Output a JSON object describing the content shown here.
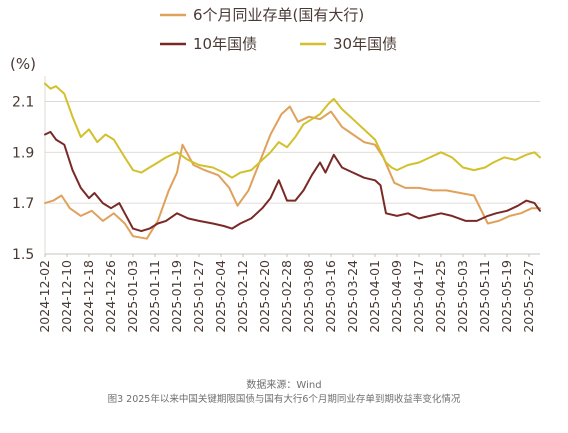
{
  "chart_data": {
    "type": "line",
    "ylabel": "(%)",
    "ylim": [
      1.5,
      2.2
    ],
    "yticks": [
      1.5,
      1.7,
      1.9,
      2.1
    ],
    "ytick_labels": [
      "1.5",
      "1.7",
      "1.9",
      "2.1"
    ],
    "grid": "horizontal",
    "legend_placement": "top-center",
    "x_tick_labels": [
      "2024-12-02",
      "2024-12-10",
      "2024-12-18",
      "2024-12-26",
      "2025-01-03",
      "2025-01-11",
      "2025-01-19",
      "2025-01-27",
      "2025-02-04",
      "2025-02-12",
      "2025-02-20",
      "2025-02-28",
      "2025-03-08",
      "2025-03-16",
      "2025-03-24",
      "2025-04-01",
      "2025-04-09",
      "2025-04-17",
      "2025-04-25",
      "2025-05-03",
      "2025-05-11",
      "2025-05-19",
      "2025-05-27"
    ],
    "series": [
      {
        "name": "6个月同业存单(国有大行)",
        "color": "#e0a15c",
        "points": [
          [
            "2024-12-02",
            1.7
          ],
          [
            "2024-12-05",
            1.71
          ],
          [
            "2024-12-08",
            1.73
          ],
          [
            "2024-12-11",
            1.68
          ],
          [
            "2024-12-15",
            1.65
          ],
          [
            "2024-12-19",
            1.67
          ],
          [
            "2024-12-23",
            1.63
          ],
          [
            "2024-12-27",
            1.66
          ],
          [
            "2024-12-31",
            1.62
          ],
          [
            "2025-01-03",
            1.57
          ],
          [
            "2025-01-08",
            1.56
          ],
          [
            "2025-01-12",
            1.63
          ],
          [
            "2025-01-16",
            1.75
          ],
          [
            "2025-01-19",
            1.82
          ],
          [
            "2025-01-21",
            1.93
          ],
          [
            "2025-01-25",
            1.85
          ],
          [
            "2025-01-29",
            1.83
          ],
          [
            "2025-02-03",
            1.81
          ],
          [
            "2025-02-07",
            1.76
          ],
          [
            "2025-02-10",
            1.69
          ],
          [
            "2025-02-14",
            1.75
          ],
          [
            "2025-02-18",
            1.86
          ],
          [
            "2025-02-22",
            1.97
          ],
          [
            "2025-02-26",
            2.05
          ],
          [
            "2025-03-01",
            2.08
          ],
          [
            "2025-03-04",
            2.02
          ],
          [
            "2025-03-08",
            2.04
          ],
          [
            "2025-03-12",
            2.03
          ],
          [
            "2025-03-16",
            2.06
          ],
          [
            "2025-03-20",
            2.0
          ],
          [
            "2025-03-24",
            1.97
          ],
          [
            "2025-03-28",
            1.94
          ],
          [
            "2025-04-01",
            1.93
          ],
          [
            "2025-04-04",
            1.88
          ],
          [
            "2025-04-08",
            1.78
          ],
          [
            "2025-04-12",
            1.76
          ],
          [
            "2025-04-17",
            1.76
          ],
          [
            "2025-04-22",
            1.75
          ],
          [
            "2025-04-27",
            1.75
          ],
          [
            "2025-05-02",
            1.74
          ],
          [
            "2025-05-07",
            1.73
          ],
          [
            "2025-05-12",
            1.62
          ],
          [
            "2025-05-16",
            1.63
          ],
          [
            "2025-05-20",
            1.65
          ],
          [
            "2025-05-24",
            1.66
          ],
          [
            "2025-05-28",
            1.68
          ],
          [
            "2025-05-31",
            1.68
          ]
        ]
      },
      {
        "name": "10年国债",
        "color": "#7a2a26",
        "points": [
          [
            "2024-12-02",
            1.97
          ],
          [
            "2024-12-04",
            1.98
          ],
          [
            "2024-12-06",
            1.95
          ],
          [
            "2024-12-09",
            1.93
          ],
          [
            "2024-12-12",
            1.83
          ],
          [
            "2024-12-15",
            1.76
          ],
          [
            "2024-12-18",
            1.72
          ],
          [
            "2024-12-20",
            1.74
          ],
          [
            "2024-12-23",
            1.7
          ],
          [
            "2024-12-26",
            1.68
          ],
          [
            "2024-12-29",
            1.7
          ],
          [
            "2024-12-31",
            1.66
          ],
          [
            "2025-01-03",
            1.6
          ],
          [
            "2025-01-06",
            1.59
          ],
          [
            "2025-01-09",
            1.6
          ],
          [
            "2025-01-12",
            1.62
          ],
          [
            "2025-01-15",
            1.63
          ],
          [
            "2025-01-19",
            1.66
          ],
          [
            "2025-01-23",
            1.64
          ],
          [
            "2025-01-27",
            1.63
          ],
          [
            "2025-02-01",
            1.62
          ],
          [
            "2025-02-05",
            1.61
          ],
          [
            "2025-02-08",
            1.6
          ],
          [
            "2025-02-11",
            1.62
          ],
          [
            "2025-02-15",
            1.64
          ],
          [
            "2025-02-19",
            1.68
          ],
          [
            "2025-02-22",
            1.72
          ],
          [
            "2025-02-25",
            1.79
          ],
          [
            "2025-02-28",
            1.71
          ],
          [
            "2025-03-03",
            1.71
          ],
          [
            "2025-03-06",
            1.75
          ],
          [
            "2025-03-09",
            1.81
          ],
          [
            "2025-03-12",
            1.86
          ],
          [
            "2025-03-14",
            1.82
          ],
          [
            "2025-03-17",
            1.89
          ],
          [
            "2025-03-20",
            1.84
          ],
          [
            "2025-03-24",
            1.82
          ],
          [
            "2025-03-28",
            1.8
          ],
          [
            "2025-04-01",
            1.79
          ],
          [
            "2025-04-03",
            1.77
          ],
          [
            "2025-04-05",
            1.66
          ],
          [
            "2025-04-09",
            1.65
          ],
          [
            "2025-04-13",
            1.66
          ],
          [
            "2025-04-17",
            1.64
          ],
          [
            "2025-04-21",
            1.65
          ],
          [
            "2025-04-25",
            1.66
          ],
          [
            "2025-04-29",
            1.65
          ],
          [
            "2025-05-04",
            1.63
          ],
          [
            "2025-05-08",
            1.63
          ],
          [
            "2025-05-12",
            1.65
          ],
          [
            "2025-05-15",
            1.66
          ],
          [
            "2025-05-19",
            1.67
          ],
          [
            "2025-05-23",
            1.69
          ],
          [
            "2025-05-26",
            1.71
          ],
          [
            "2025-05-29",
            1.7
          ],
          [
            "2025-05-31",
            1.67
          ]
        ]
      },
      {
        "name": "30年国债",
        "color": "#d2c02c",
        "points": [
          [
            "2024-12-02",
            2.17
          ],
          [
            "2024-12-04",
            2.15
          ],
          [
            "2024-12-06",
            2.16
          ],
          [
            "2024-12-09",
            2.13
          ],
          [
            "2024-12-12",
            2.04
          ],
          [
            "2024-12-15",
            1.96
          ],
          [
            "2024-12-18",
            1.99
          ],
          [
            "2024-12-21",
            1.94
          ],
          [
            "2024-12-24",
            1.97
          ],
          [
            "2024-12-27",
            1.95
          ],
          [
            "2024-12-31",
            1.88
          ],
          [
            "2025-01-03",
            1.83
          ],
          [
            "2025-01-06",
            1.82
          ],
          [
            "2025-01-09",
            1.84
          ],
          [
            "2025-01-12",
            1.86
          ],
          [
            "2025-01-15",
            1.88
          ],
          [
            "2025-01-19",
            1.9
          ],
          [
            "2025-01-23",
            1.87
          ],
          [
            "2025-01-27",
            1.85
          ],
          [
            "2025-02-01",
            1.84
          ],
          [
            "2025-02-05",
            1.82
          ],
          [
            "2025-02-08",
            1.8
          ],
          [
            "2025-02-11",
            1.82
          ],
          [
            "2025-02-15",
            1.83
          ],
          [
            "2025-02-19",
            1.87
          ],
          [
            "2025-02-22",
            1.9
          ],
          [
            "2025-02-25",
            1.94
          ],
          [
            "2025-02-28",
            1.92
          ],
          [
            "2025-03-03",
            1.96
          ],
          [
            "2025-03-06",
            2.01
          ],
          [
            "2025-03-09",
            2.03
          ],
          [
            "2025-03-12",
            2.05
          ],
          [
            "2025-03-15",
            2.09
          ],
          [
            "2025-03-17",
            2.11
          ],
          [
            "2025-03-20",
            2.07
          ],
          [
            "2025-03-24",
            2.03
          ],
          [
            "2025-03-28",
            1.99
          ],
          [
            "2025-04-01",
            1.95
          ],
          [
            "2025-04-05",
            1.86
          ],
          [
            "2025-04-07",
            1.84
          ],
          [
            "2025-04-09",
            1.83
          ],
          [
            "2025-04-13",
            1.85
          ],
          [
            "2025-04-17",
            1.86
          ],
          [
            "2025-04-21",
            1.88
          ],
          [
            "2025-04-25",
            1.9
          ],
          [
            "2025-04-29",
            1.88
          ],
          [
            "2025-05-03",
            1.84
          ],
          [
            "2025-05-07",
            1.83
          ],
          [
            "2025-05-11",
            1.84
          ],
          [
            "2025-05-14",
            1.86
          ],
          [
            "2025-05-18",
            1.88
          ],
          [
            "2025-05-22",
            1.87
          ],
          [
            "2025-05-26",
            1.89
          ],
          [
            "2025-05-29",
            1.9
          ],
          [
            "2025-05-31",
            1.88
          ]
        ]
      }
    ]
  },
  "footer": {
    "source": "数据来源：Wind",
    "caption": "图3 2025年以来中国关键期限国债与国有大行6个月期同业存单到期收益率变化情况"
  }
}
